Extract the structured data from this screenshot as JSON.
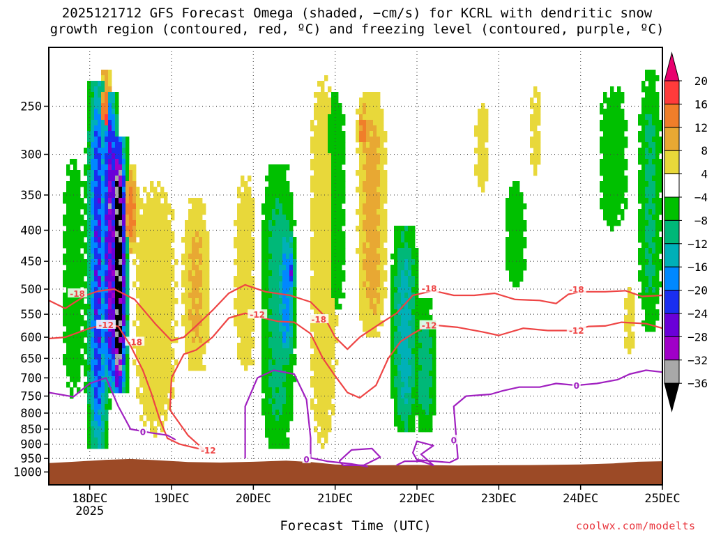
{
  "title_lines": [
    "2025121712 GFS Forecast Omega (shaded, −cm/s) for KCRL with dendritic snow",
    "growth region (contoured, red, ºC) and freezing level (contoured, purple, ºC)"
  ],
  "xlabel": "Forecast Time (UTC)",
  "credit": "coolwx.com/modelts",
  "chart_data": {
    "type": "heatmap",
    "title": "2025121712 GFS Forecast Omega (shaded, −cm/s) for KCRL with dendritic snow growth region (contoured, red, ºC) and freezing level (contoured, purple, ºC)",
    "xlabel": "Forecast Time (UTC)",
    "ylabel": "",
    "x_ticks": [
      "18DEC",
      "19DEC",
      "20DEC",
      "21DEC",
      "22DEC",
      "23DEC",
      "24DEC",
      "25DEC"
    ],
    "x_tick_values": [
      18,
      19,
      20,
      21,
      22,
      23,
      24,
      25
    ],
    "x_sublabel": {
      "under": "18DEC",
      "text": "2025"
    },
    "xlim": [
      17.5,
      25.0
    ],
    "y_ticks": [
      250,
      300,
      350,
      400,
      450,
      500,
      550,
      600,
      650,
      700,
      750,
      800,
      850,
      900,
      950,
      1000
    ],
    "ylim": [
      1050,
      200
    ],
    "y_scale": "log",
    "grid": true,
    "colorbar": {
      "tick_labels": [
        "20",
        "16",
        "12",
        "8",
        "4",
        "−4",
        "−8",
        "−12",
        "−16",
        "−20",
        "−24",
        "−28",
        "−32",
        "−36"
      ],
      "bins": [
        {
          "range": [
            20,
            24
          ],
          "color": "#e8006e"
        },
        {
          "range": [
            16,
            20
          ],
          "color": "#ff3b3b"
        },
        {
          "range": [
            12,
            16
          ],
          "color": "#f07e2a"
        },
        {
          "range": [
            8,
            12
          ],
          "color": "#e8a833"
        },
        {
          "range": [
            4,
            8
          ],
          "color": "#e8d83a"
        },
        {
          "range": [
            -4,
            4
          ],
          "color": "#ffffff"
        },
        {
          "range": [
            -8,
            -4
          ],
          "color": "#00c000"
        },
        {
          "range": [
            -12,
            -8
          ],
          "color": "#00b878"
        },
        {
          "range": [
            -16,
            -12
          ],
          "color": "#00b0b8"
        },
        {
          "range": [
            -20,
            -16
          ],
          "color": "#0088ff"
        },
        {
          "range": [
            -24,
            -20
          ],
          "color": "#1a2ef0"
        },
        {
          "range": [
            -28,
            -24
          ],
          "color": "#6a00d8"
        },
        {
          "range": [
            -32,
            -28
          ],
          "color": "#a000c8"
        },
        {
          "range": [
            -36,
            -32
          ],
          "color": "#a8a8a8"
        },
        {
          "range": [
            -40,
            -36
          ],
          "color": "#000000"
        }
      ]
    },
    "omega_features": [
      {
        "time": 18.1,
        "p_top": 240,
        "p_bot": 880,
        "value": -22,
        "halfwidth_h": 2.0
      },
      {
        "time": 18.35,
        "p_top": 300,
        "p_bot": 720,
        "value": -40,
        "halfwidth_h": 1.5
      },
      {
        "time": 18.25,
        "p_top": 250,
        "p_bot": 700,
        "value": -28,
        "halfwidth_h": 1.5
      },
      {
        "time": 18.2,
        "p_top": 230,
        "p_bot": 400,
        "value": 16,
        "halfwidth_h": 1.5
      },
      {
        "time": 18.5,
        "p_top": 330,
        "p_bot": 420,
        "value": 14,
        "halfwidth_h": 1.5
      },
      {
        "time": 17.8,
        "p_top": 300,
        "p_bot": 760,
        "value": -6,
        "halfwidth_h": 3.0
      },
      {
        "time": 18.8,
        "p_top": 330,
        "p_bot": 880,
        "value": 6,
        "halfwidth_h": 6.0
      },
      {
        "time": 19.3,
        "p_top": 380,
        "p_bot": 650,
        "value": 9,
        "halfwidth_h": 3.0
      },
      {
        "time": 19.9,
        "p_top": 320,
        "p_bot": 700,
        "value": 6,
        "halfwidth_h": 3.0
      },
      {
        "time": 20.3,
        "p_top": 330,
        "p_bot": 880,
        "value": -10,
        "halfwidth_h": 3.5
      },
      {
        "time": 20.4,
        "p_top": 410,
        "p_bot": 640,
        "value": -18,
        "halfwidth_h": 1.8
      },
      {
        "time": 20.45,
        "p_top": 440,
        "p_bot": 500,
        "value": -23,
        "halfwidth_h": 1.0
      },
      {
        "time": 20.85,
        "p_top": 220,
        "p_bot": 930,
        "value": 6,
        "halfwidth_h": 4.0
      },
      {
        "time": 21.0,
        "p_top": 230,
        "p_bot": 560,
        "value": -6,
        "halfwidth_h": 3.0
      },
      {
        "time": 21.45,
        "p_top": 250,
        "p_bot": 580,
        "value": 10,
        "halfwidth_h": 3.0
      },
      {
        "time": 21.35,
        "p_top": 260,
        "p_bot": 290,
        "value": 14,
        "halfwidth_h": 1.5
      },
      {
        "time": 21.85,
        "p_top": 420,
        "p_bot": 820,
        "value": -14,
        "halfwidth_h": 2.5
      },
      {
        "time": 22.1,
        "p_top": 550,
        "p_bot": 820,
        "value": -10,
        "halfwidth_h": 2.5
      },
      {
        "time": 22.8,
        "p_top": 240,
        "p_bot": 350,
        "value": 5,
        "halfwidth_h": 2.5
      },
      {
        "time": 23.2,
        "p_top": 330,
        "p_bot": 500,
        "value": -6,
        "halfwidth_h": 3.0
      },
      {
        "time": 23.45,
        "p_top": 230,
        "p_bot": 330,
        "value": 5,
        "halfwidth_h": 2.0
      },
      {
        "time": 24.4,
        "p_top": 230,
        "p_bot": 400,
        "value": -6,
        "halfwidth_h": 4.0
      },
      {
        "time": 24.6,
        "p_top": 480,
        "p_bot": 650,
        "value": 5,
        "halfwidth_h": 2.0
      },
      {
        "time": 24.85,
        "p_top": 230,
        "p_bot": 560,
        "value": -9,
        "halfwidth_h": 2.5
      }
    ],
    "contours": [
      {
        "name": "-18",
        "color": "#ee4444",
        "points": [
          [
            17.5,
            522
          ],
          [
            17.7,
            538
          ],
          [
            17.95,
            512
          ],
          [
            18.1,
            504
          ],
          [
            18.3,
            500
          ],
          [
            18.55,
            520
          ],
          [
            18.8,
            570
          ],
          [
            19.0,
            608
          ],
          [
            19.15,
            600
          ],
          [
            19.3,
            575
          ],
          [
            19.5,
            542
          ],
          [
            19.7,
            508
          ],
          [
            19.9,
            492
          ],
          [
            20.15,
            505
          ],
          [
            20.45,
            512
          ],
          [
            20.7,
            525
          ],
          [
            20.85,
            550
          ],
          [
            21.0,
            600
          ],
          [
            21.15,
            628
          ],
          [
            21.3,
            600
          ],
          [
            21.55,
            570
          ],
          [
            21.75,
            548
          ],
          [
            21.95,
            512
          ],
          [
            22.2,
            503
          ],
          [
            22.45,
            512
          ],
          [
            22.7,
            512
          ],
          [
            22.95,
            508
          ],
          [
            23.2,
            520
          ],
          [
            23.5,
            522
          ],
          [
            23.7,
            528
          ],
          [
            23.85,
            510
          ],
          [
            24.0,
            505
          ],
          [
            24.3,
            505
          ],
          [
            24.55,
            503
          ],
          [
            24.75,
            514
          ],
          [
            25.0,
            512
          ]
        ],
        "labels": [
          [
            17.85,
            508
          ],
          [
            18.55,
            610
          ],
          [
            22.15,
            498
          ],
          [
            23.95,
            500
          ],
          [
            20.8,
            560
          ]
        ]
      },
      {
        "name": "-12",
        "color": "#ee4444",
        "points": [
          [
            17.5,
            603
          ],
          [
            17.7,
            600
          ],
          [
            18.0,
            580
          ],
          [
            18.2,
            572
          ],
          [
            18.35,
            576
          ],
          [
            18.5,
            620
          ],
          [
            18.65,
            680
          ],
          [
            18.75,
            740
          ],
          [
            18.85,
            815
          ],
          [
            18.95,
            880
          ],
          [
            19.1,
            900
          ],
          [
            19.25,
            910
          ],
          [
            19.4,
            920
          ],
          [
            19.2,
            870
          ],
          [
            18.98,
            790
          ],
          [
            19.0,
            700
          ],
          [
            19.15,
            640
          ],
          [
            19.3,
            630
          ],
          [
            19.5,
            600
          ],
          [
            19.7,
            558
          ],
          [
            19.9,
            548
          ],
          [
            20.1,
            557
          ],
          [
            20.3,
            565
          ],
          [
            20.5,
            567
          ],
          [
            20.7,
            592
          ],
          [
            20.85,
            650
          ],
          [
            21.0,
            695
          ],
          [
            21.15,
            740
          ],
          [
            21.3,
            755
          ],
          [
            21.5,
            720
          ],
          [
            21.65,
            650
          ],
          [
            21.8,
            610
          ],
          [
            21.95,
            592
          ],
          [
            22.15,
            572
          ],
          [
            22.5,
            578
          ],
          [
            22.8,
            588
          ],
          [
            23.0,
            596
          ],
          [
            23.3,
            580
          ],
          [
            23.6,
            585
          ],
          [
            23.9,
            585
          ],
          [
            24.1,
            576
          ],
          [
            24.3,
            575
          ],
          [
            24.5,
            567
          ],
          [
            24.8,
            570
          ],
          [
            25.0,
            580
          ]
        ],
        "labels": [
          [
            18.2,
            572
          ],
          [
            19.45,
            920
          ],
          [
            20.05,
            550
          ],
          [
            22.15,
            573
          ],
          [
            23.95,
            584
          ]
        ]
      },
      {
        "name": "0",
        "color": "#a020c0",
        "points": [
          [
            17.5,
            740
          ],
          [
            17.8,
            752
          ],
          [
            18.0,
            715
          ],
          [
            18.2,
            700
          ],
          [
            18.35,
            780
          ],
          [
            18.5,
            850
          ],
          [
            18.75,
            862
          ],
          [
            18.95,
            870
          ],
          [
            19.05,
            885
          ]
        ],
        "labels": [
          [
            18.65,
            858
          ]
        ]
      },
      {
        "name": "0",
        "color": "#a020c0",
        "points": [
          [
            19.9,
            950
          ],
          [
            19.9,
            780
          ],
          [
            20.05,
            700
          ],
          [
            20.25,
            680
          ],
          [
            20.5,
            690
          ],
          [
            20.65,
            760
          ],
          [
            20.7,
            880
          ],
          [
            20.7,
            948
          ],
          [
            20.9,
            960
          ],
          [
            21.2,
            970
          ],
          [
            21.4,
            980
          ]
        ],
        "labels": [
          [
            20.65,
            952
          ]
        ]
      },
      {
        "name": "0",
        "color": "#a020c0",
        "points": [
          [
            21.05,
            960
          ],
          [
            21.2,
            920
          ],
          [
            21.45,
            915
          ],
          [
            21.55,
            945
          ],
          [
            21.35,
            975
          ],
          [
            21.1,
            975
          ],
          [
            21.05,
            960
          ]
        ],
        "labels": []
      },
      {
        "name": "0",
        "color": "#a020c0",
        "points": [
          [
            21.75,
            975
          ],
          [
            21.85,
            960
          ],
          [
            22.05,
            960
          ],
          [
            22.2,
            975
          ],
          [
            22.05,
            935
          ],
          [
            22.2,
            905
          ],
          [
            22.0,
            890
          ],
          [
            21.95,
            930
          ],
          [
            22.0,
            955
          ],
          [
            22.4,
            965
          ],
          [
            22.5,
            950
          ],
          [
            22.45,
            780
          ],
          [
            22.6,
            750
          ],
          [
            22.9,
            745
          ],
          [
            23.05,
            735
          ],
          [
            23.25,
            725
          ],
          [
            23.5,
            725
          ],
          [
            23.7,
            715
          ],
          [
            23.95,
            720
          ],
          [
            24.2,
            715
          ],
          [
            24.45,
            705
          ],
          [
            24.6,
            690
          ],
          [
            24.8,
            680
          ],
          [
            25.0,
            685
          ]
        ],
        "labels": [
          [
            23.95,
            720
          ],
          [
            22.45,
            885
          ]
        ]
      }
    ]
  }
}
